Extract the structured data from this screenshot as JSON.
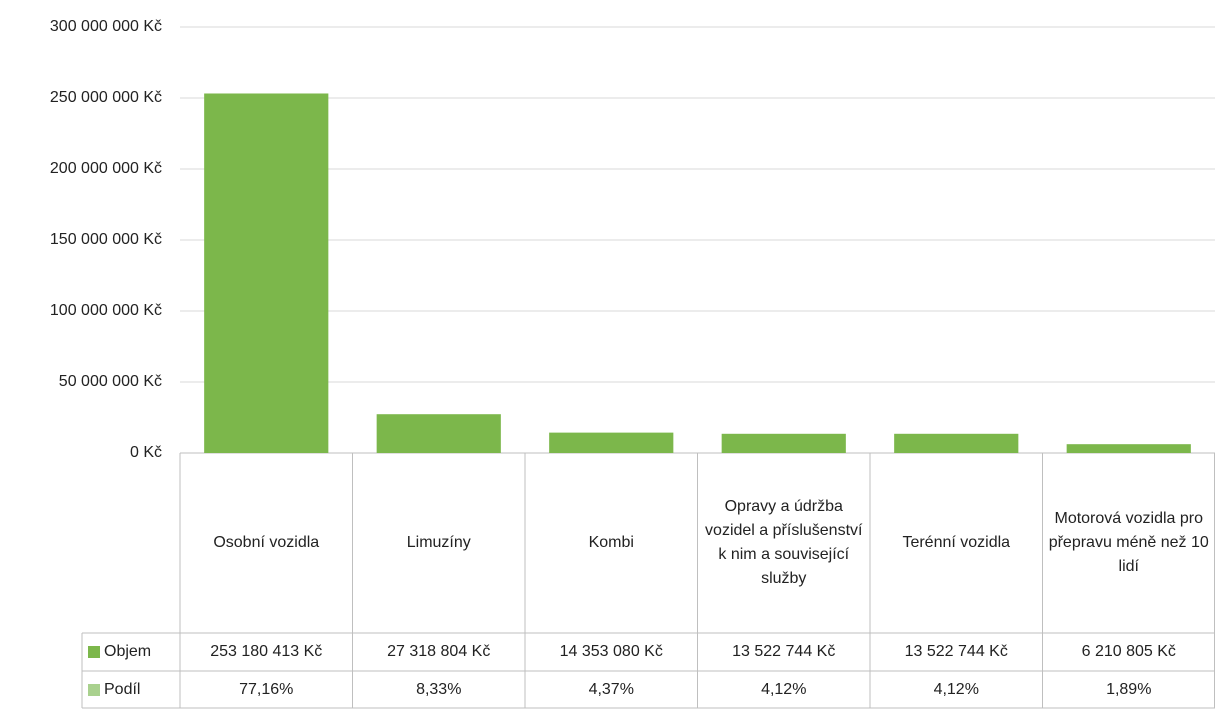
{
  "chart_data": {
    "type": "bar",
    "categories": [
      "Osobní vozidla",
      "Limuzíny",
      "Kombi",
      "Opravy a údržba vozidel a příslušenství k nim a související služby",
      "Terénní vozidla",
      "Motorová vozidla pro přepravu méně než 10 lidí"
    ],
    "series": [
      {
        "name": "Objem",
        "color": "#7cb74b",
        "values": [
          253180413,
          27318804,
          14353080,
          13522744,
          13522744,
          6210805
        ],
        "value_labels": [
          "253 180 413 Kč",
          "27 318 804 Kč",
          "14 353 080 Kč",
          "13 522 744 Kč",
          "13 522 744 Kč",
          "6 210 805 Kč"
        ]
      },
      {
        "name": "Podíl",
        "color": "#a9d18e",
        "values": [
          77.16,
          8.33,
          4.37,
          4.12,
          4.12,
          1.89
        ],
        "value_labels": [
          "77,16%",
          "8,33%",
          "4,37%",
          "4,12%",
          "4,12%",
          "1,89%"
        ]
      }
    ],
    "ylim": [
      0,
      300000000
    ],
    "yticks": [
      {
        "value": 0,
        "label": "0 Kč"
      },
      {
        "value": 50000000,
        "label": "50 000 000 Kč"
      },
      {
        "value": 100000000,
        "label": "100 000 000 Kč"
      },
      {
        "value": 150000000,
        "label": "150 000 000 Kč"
      },
      {
        "value": 200000000,
        "label": "200 000 000 Kč"
      },
      {
        "value": 250000000,
        "label": "250 000 000 Kč"
      },
      {
        "value": 300000000,
        "label": "300 000 000 Kč"
      }
    ],
    "grid": true
  }
}
